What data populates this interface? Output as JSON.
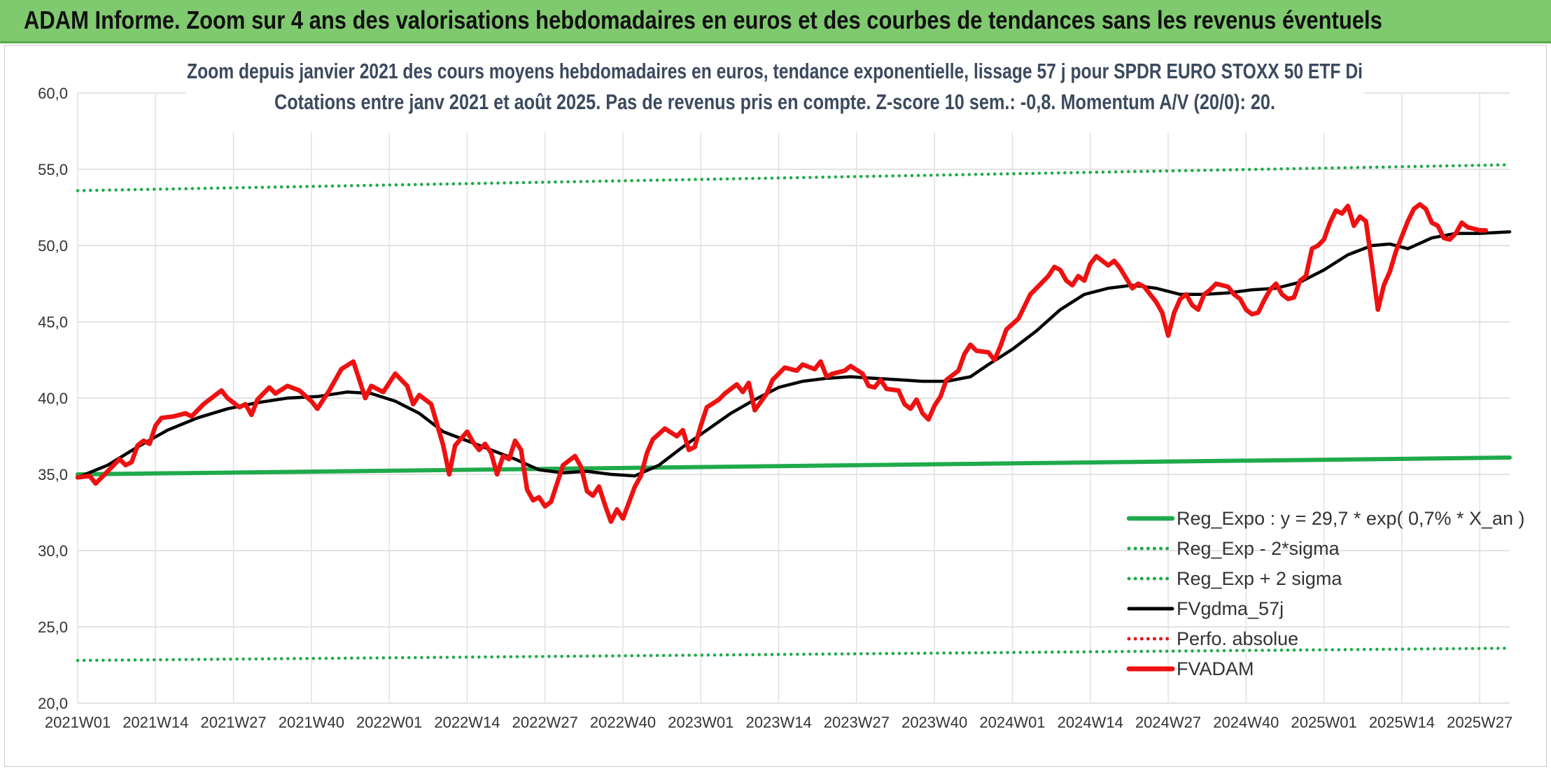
{
  "page": {
    "banner_title": "ADAM Informe. Zoom sur 4 ans des valorisations hebdomadaires en euros et des courbes de tendances sans les revenus éventuels"
  },
  "chart_data": {
    "type": "line",
    "title_line1": "Zoom depuis janvier 2021 des cours moyens hebdomadaires en euros, tendance exponentielle, lissage 57 j pour SPDR EURO STOXX 50 ETF Di",
    "title_line2": "Cotations entre janv 2021 et août 2025. Pas de revenus pris en compte. Z-score 10 sem.: -0,8. Momentum A/V (20/0): 20.",
    "xlabel": "",
    "ylabel": "",
    "ylim": [
      20,
      60
    ],
    "y_ticks": [
      60,
      55,
      50,
      45,
      40,
      35,
      30,
      25,
      20
    ],
    "y_tick_labels": [
      "60,0",
      "55,0",
      "50,0",
      "45,0",
      "40,0",
      "35,0",
      "30,0",
      "25,0",
      "20,0"
    ],
    "x_range_weeks": [
      0,
      239
    ],
    "x_tick_weeks": [
      0,
      13,
      26,
      39,
      52,
      65,
      78,
      91,
      104,
      117,
      130,
      143,
      156,
      169,
      182,
      195,
      208,
      221,
      234
    ],
    "x_tick_labels": [
      "2021W01",
      "2021W14",
      "2021W27",
      "2021W40",
      "2022W01",
      "2022W14",
      "2022W27",
      "2022W40",
      "2023W01",
      "2023W14",
      "2023W27",
      "2023W40",
      "2024W01",
      "2024W14",
      "2024W27",
      "2024W40",
      "2025W01",
      "2025W14",
      "2025W27"
    ],
    "grid": true,
    "legend_position": "bottom-right",
    "series": [
      {
        "name": "Reg_Expo : y = 29,7 * exp( 0,7% *  X_an )",
        "color": "#1faa4b",
        "style": "solid-thick",
        "points": [
          [
            0,
            35.0
          ],
          [
            239,
            36.1
          ]
        ]
      },
      {
        "name": "Reg_Exp - 2*sigma",
        "color": "#1faa4b",
        "style": "dotted",
        "points": [
          [
            0,
            22.8
          ],
          [
            239,
            23.6
          ]
        ]
      },
      {
        "name": "Reg_Exp + 2 sigma",
        "color": "#1faa4b",
        "style": "dotted",
        "points": [
          [
            0,
            53.6
          ],
          [
            239,
            55.3
          ]
        ]
      },
      {
        "name": "FVgdma_57j",
        "color": "#000000",
        "style": "solid",
        "points": [
          [
            0,
            34.8
          ],
          [
            5,
            35.6
          ],
          [
            10,
            36.8
          ],
          [
            15,
            37.9
          ],
          [
            20,
            38.7
          ],
          [
            25,
            39.3
          ],
          [
            30,
            39.7
          ],
          [
            35,
            40.0
          ],
          [
            40,
            40.1
          ],
          [
            45,
            40.4
          ],
          [
            49,
            40.3
          ],
          [
            53,
            39.8
          ],
          [
            57,
            39.0
          ],
          [
            61,
            37.8
          ],
          [
            65,
            37.2
          ],
          [
            69,
            36.6
          ],
          [
            73,
            36.0
          ],
          [
            77,
            35.3
          ],
          [
            81,
            35.1
          ],
          [
            85,
            35.2
          ],
          [
            89,
            35.0
          ],
          [
            93,
            34.9
          ],
          [
            97,
            35.6
          ],
          [
            101,
            36.8
          ],
          [
            105,
            37.9
          ],
          [
            109,
            39.0
          ],
          [
            113,
            39.9
          ],
          [
            117,
            40.7
          ],
          [
            121,
            41.1
          ],
          [
            125,
            41.3
          ],
          [
            129,
            41.4
          ],
          [
            133,
            41.3
          ],
          [
            137,
            41.2
          ],
          [
            141,
            41.1
          ],
          [
            145,
            41.1
          ],
          [
            149,
            41.4
          ],
          [
            152,
            42.2
          ],
          [
            156,
            43.2
          ],
          [
            160,
            44.4
          ],
          [
            164,
            45.8
          ],
          [
            168,
            46.8
          ],
          [
            172,
            47.2
          ],
          [
            176,
            47.4
          ],
          [
            180,
            47.2
          ],
          [
            184,
            46.8
          ],
          [
            188,
            46.8
          ],
          [
            192,
            46.9
          ],
          [
            196,
            47.1
          ],
          [
            200,
            47.2
          ],
          [
            204,
            47.6
          ],
          [
            208,
            48.4
          ],
          [
            212,
            49.4
          ],
          [
            216,
            50.0
          ],
          [
            219,
            50.1
          ],
          [
            222,
            49.8
          ],
          [
            226,
            50.5
          ],
          [
            230,
            50.8
          ],
          [
            234,
            50.8
          ],
          [
            239,
            50.9
          ]
        ]
      },
      {
        "name": "Perfo. absolue",
        "color": "#e11b1b",
        "style": "dotted",
        "points": []
      },
      {
        "name": "FVADAM",
        "color": "#ee1111",
        "style": "solid-thick",
        "points": [
          [
            0,
            34.8
          ],
          [
            2,
            34.9
          ],
          [
            3,
            34.4
          ],
          [
            5,
            35.2
          ],
          [
            7,
            36.0
          ],
          [
            8,
            35.6
          ],
          [
            9,
            35.8
          ],
          [
            10,
            36.9
          ],
          [
            11,
            37.2
          ],
          [
            12,
            37.0
          ],
          [
            13,
            38.2
          ],
          [
            14,
            38.7
          ],
          [
            16,
            38.8
          ],
          [
            18,
            39.0
          ],
          [
            19,
            38.8
          ],
          [
            21,
            39.6
          ],
          [
            23,
            40.2
          ],
          [
            24,
            40.5
          ],
          [
            25,
            40.0
          ],
          [
            27,
            39.4
          ],
          [
            28,
            39.6
          ],
          [
            29,
            38.9
          ],
          [
            30,
            39.9
          ],
          [
            32,
            40.7
          ],
          [
            33,
            40.3
          ],
          [
            35,
            40.8
          ],
          [
            37,
            40.5
          ],
          [
            39,
            39.8
          ],
          [
            40,
            39.3
          ],
          [
            42,
            40.5
          ],
          [
            44,
            41.9
          ],
          [
            46,
            42.4
          ],
          [
            47,
            41.2
          ],
          [
            48,
            40.0
          ],
          [
            49,
            40.8
          ],
          [
            51,
            40.4
          ],
          [
            53,
            41.6
          ],
          [
            55,
            40.8
          ],
          [
            56,
            39.6
          ],
          [
            57,
            40.2
          ],
          [
            59,
            39.6
          ],
          [
            61,
            36.9
          ],
          [
            62,
            35.0
          ],
          [
            63,
            36.9
          ],
          [
            65,
            37.8
          ],
          [
            66,
            37.1
          ],
          [
            67,
            36.6
          ],
          [
            68,
            37.0
          ],
          [
            69,
            36.4
          ],
          [
            70,
            35.0
          ],
          [
            71,
            36.2
          ],
          [
            72,
            36.0
          ],
          [
            73,
            37.2
          ],
          [
            74,
            36.6
          ],
          [
            75,
            34.0
          ],
          [
            76,
            33.3
          ],
          [
            77,
            33.5
          ],
          [
            78,
            32.9
          ],
          [
            79,
            33.2
          ],
          [
            80,
            34.4
          ],
          [
            81,
            35.6
          ],
          [
            83,
            36.2
          ],
          [
            84,
            35.5
          ],
          [
            85,
            33.9
          ],
          [
            86,
            33.6
          ],
          [
            87,
            34.2
          ],
          [
            88,
            33.0
          ],
          [
            89,
            31.9
          ],
          [
            90,
            32.7
          ],
          [
            91,
            32.1
          ],
          [
            93,
            34.2
          ],
          [
            94,
            34.9
          ],
          [
            95,
            36.4
          ],
          [
            96,
            37.3
          ],
          [
            98,
            38.0
          ],
          [
            100,
            37.5
          ],
          [
            101,
            37.9
          ],
          [
            102,
            36.6
          ],
          [
            103,
            36.8
          ],
          [
            104,
            38.2
          ],
          [
            105,
            39.4
          ],
          [
            107,
            39.9
          ],
          [
            108,
            40.3
          ],
          [
            110,
            40.9
          ],
          [
            111,
            40.4
          ],
          [
            112,
            41.0
          ],
          [
            113,
            39.2
          ],
          [
            115,
            40.3
          ],
          [
            116,
            41.2
          ],
          [
            118,
            42.0
          ],
          [
            120,
            41.8
          ],
          [
            121,
            42.2
          ],
          [
            123,
            41.9
          ],
          [
            124,
            42.4
          ],
          [
            125,
            41.4
          ],
          [
            126,
            41.6
          ],
          [
            128,
            41.8
          ],
          [
            129,
            42.1
          ],
          [
            131,
            41.6
          ],
          [
            132,
            40.8
          ],
          [
            133,
            40.7
          ],
          [
            134,
            41.2
          ],
          [
            135,
            40.6
          ],
          [
            137,
            40.5
          ],
          [
            138,
            39.6
          ],
          [
            139,
            39.3
          ],
          [
            140,
            39.9
          ],
          [
            141,
            39.0
          ],
          [
            142,
            38.6
          ],
          [
            143,
            39.5
          ],
          [
            144,
            40.1
          ],
          [
            145,
            41.2
          ],
          [
            147,
            41.8
          ],
          [
            148,
            42.9
          ],
          [
            149,
            43.5
          ],
          [
            150,
            43.1
          ],
          [
            152,
            43.0
          ],
          [
            153,
            42.5
          ],
          [
            154,
            43.4
          ],
          [
            155,
            44.5
          ],
          [
            157,
            45.2
          ],
          [
            159,
            46.8
          ],
          [
            161,
            47.6
          ],
          [
            162,
            48.0
          ],
          [
            163,
            48.6
          ],
          [
            164,
            48.4
          ],
          [
            165,
            47.7
          ],
          [
            166,
            47.4
          ],
          [
            167,
            48.0
          ],
          [
            168,
            47.7
          ],
          [
            169,
            48.8
          ],
          [
            170,
            49.3
          ],
          [
            171,
            49.0
          ],
          [
            172,
            48.7
          ],
          [
            173,
            49.0
          ],
          [
            174,
            48.5
          ],
          [
            176,
            47.2
          ],
          [
            177,
            47.5
          ],
          [
            178,
            47.3
          ],
          [
            179,
            46.8
          ],
          [
            180,
            46.3
          ],
          [
            181,
            45.6
          ],
          [
            182,
            44.1
          ],
          [
            183,
            45.6
          ],
          [
            184,
            46.5
          ],
          [
            185,
            46.8
          ],
          [
            186,
            46.1
          ],
          [
            187,
            45.8
          ],
          [
            188,
            46.8
          ],
          [
            189,
            47.1
          ],
          [
            190,
            47.5
          ],
          [
            192,
            47.3
          ],
          [
            193,
            46.8
          ],
          [
            194,
            46.5
          ],
          [
            195,
            45.8
          ],
          [
            196,
            45.5
          ],
          [
            197,
            45.6
          ],
          [
            198,
            46.4
          ],
          [
            199,
            47.1
          ],
          [
            200,
            47.5
          ],
          [
            201,
            46.8
          ],
          [
            202,
            46.5
          ],
          [
            203,
            46.6
          ],
          [
            204,
            47.7
          ],
          [
            205,
            48.0
          ],
          [
            206,
            49.8
          ],
          [
            207,
            50.0
          ],
          [
            208,
            50.4
          ],
          [
            209,
            51.5
          ],
          [
            210,
            52.3
          ],
          [
            211,
            52.1
          ],
          [
            212,
            52.6
          ],
          [
            213,
            51.3
          ],
          [
            214,
            51.9
          ],
          [
            215,
            51.6
          ],
          [
            216,
            48.8
          ],
          [
            217,
            45.8
          ],
          [
            218,
            47.4
          ],
          [
            219,
            48.3
          ],
          [
            220,
            49.6
          ],
          [
            221,
            50.6
          ],
          [
            222,
            51.6
          ],
          [
            223,
            52.4
          ],
          [
            224,
            52.7
          ],
          [
            225,
            52.4
          ],
          [
            226,
            51.5
          ],
          [
            227,
            51.3
          ],
          [
            228,
            50.5
          ],
          [
            229,
            50.4
          ],
          [
            230,
            50.8
          ],
          [
            231,
            51.5
          ],
          [
            232,
            51.2
          ],
          [
            234,
            51.0
          ],
          [
            235,
            51.0
          ]
        ]
      }
    ]
  }
}
